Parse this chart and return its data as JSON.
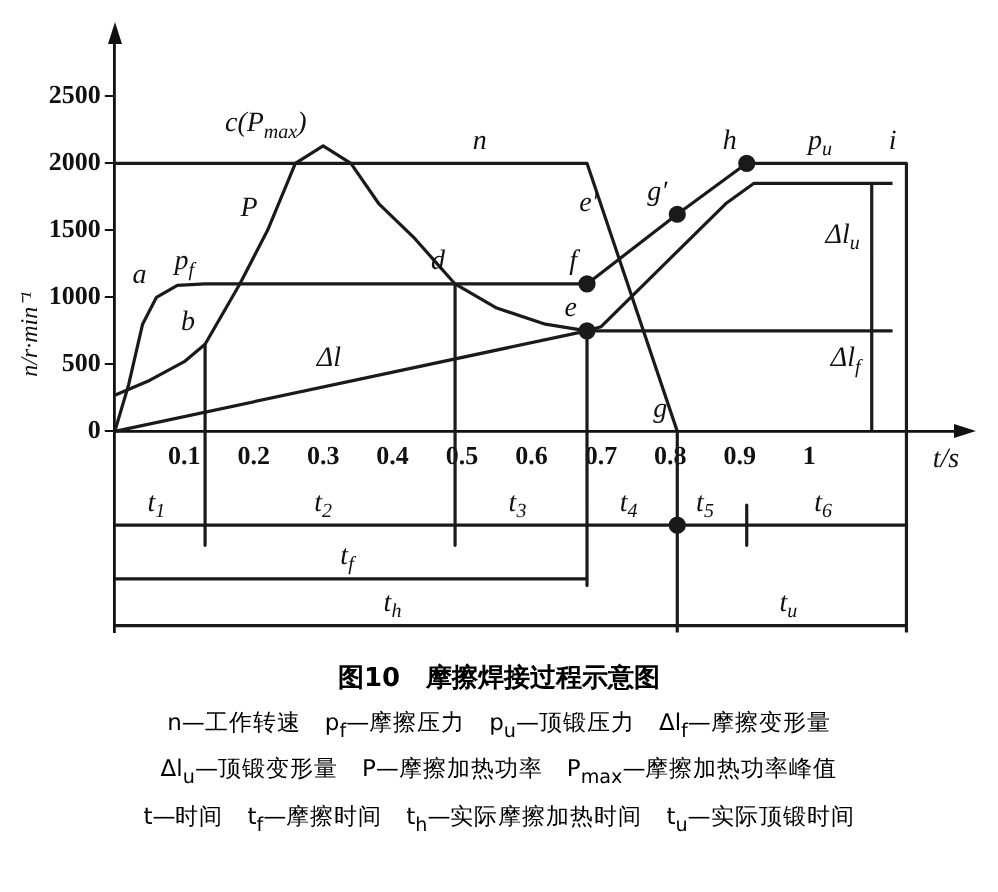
{
  "chart_data": {
    "type": "line",
    "title": "图10　摩擦焊接过程示意图",
    "xlabel": "t/s",
    "ylabel": "n/r·min⁻¹",
    "xlim": [
      0,
      1.22
    ],
    "xticks": [
      0.1,
      0.2,
      0.3,
      0.4,
      0.5,
      0.6,
      0.7,
      0.8,
      0.9,
      1.0
    ],
    "ylim": [
      -1500,
      2950
    ],
    "yticks": [
      0,
      500,
      1000,
      1500,
      2000,
      2500
    ],
    "grid": false,
    "legend": false,
    "series": [
      {
        "color": "#1a1a1a",
        "x": [
          0,
          0.68,
          0.81,
          0.81
        ],
        "values": [
          2000,
          2000,
          0,
          -1500
        ]
      },
      {
        "color": "#1a1a1a",
        "x": [
          0,
          0.02,
          0.04,
          0.06,
          0.09,
          0.13,
          0.68,
          0.81,
          0.91,
          1.14,
          1.14
        ],
        "values": [
          0,
          350,
          800,
          1000,
          1090,
          1100,
          1100,
          1620,
          2000,
          2000,
          -1500
        ]
      },
      {
        "color": "#1a1a1a",
        "x": [
          0,
          0.05,
          0.1,
          0.13,
          0.18,
          0.22,
          0.26,
          0.3,
          0.34,
          0.38,
          0.43,
          0.49,
          0.55,
          0.62,
          0.68
        ],
        "values": [
          270,
          380,
          520,
          650,
          1100,
          1500,
          2000,
          2130,
          2000,
          1700,
          1450,
          1100,
          920,
          800,
          750
        ]
      },
      {
        "color": "#1a1a1a",
        "x": [
          0,
          0.68,
          0.7,
          0.88,
          0.92,
          1.12
        ],
        "values": [
          0,
          750,
          780,
          1700,
          1850,
          1850
        ]
      },
      {
        "color": "#1a1a1a",
        "x": [
          0.68,
          1.12
        ],
        "values": [
          750,
          750
        ]
      },
      {
        "color": "#1a1a1a",
        "x": [
          0.68,
          0.68
        ],
        "values": [
          750,
          -1150
        ]
      },
      {
        "color": "#1a1a1a",
        "x": [
          0.13,
          0.13
        ],
        "values": [
          650,
          -850
        ]
      },
      {
        "color": "#1a1a1a",
        "x": [
          0.49,
          0.49
        ],
        "values": [
          1100,
          -850
        ]
      },
      {
        "color": "#1a1a1a",
        "x": [
          0.91,
          0.91
        ],
        "values": [
          -550,
          -850
        ]
      },
      {
        "color": "#1a1a1a",
        "x": [
          1.09,
          1.09
        ],
        "values": [
          0,
          1850
        ]
      },
      {
        "color": "#1a1a1a",
        "x": [
          0,
          1.14
        ],
        "values": [
          -700,
          -700
        ]
      },
      {
        "color": "#1a1a1a",
        "x": [
          0,
          0.68
        ],
        "values": [
          -1100,
          -1100
        ]
      },
      {
        "color": "#1a1a1a",
        "x": [
          0,
          1.14
        ],
        "values": [
          -1450,
          -1450
        ]
      },
      {
        "type": "scatter",
        "color": "#1a1a1a",
        "x": [
          0.68,
          0.68,
          0.81,
          0.91,
          0.81
        ],
        "values": [
          750,
          1100,
          1620,
          2000,
          -700
        ]
      }
    ],
    "annotations": [
      {
        "text": "p$_{f}$",
        "x": 0.13,
        "y": 1100
      },
      {
        "text": "a",
        "x": 0.06,
        "y": 1000
      },
      {
        "text": "b",
        "x": 0.13,
        "y": 650
      },
      {
        "text": "c(P$_{max}$)",
        "x": 0.3,
        "y": 2130
      },
      {
        "text": "P",
        "x": 0.22,
        "y": 1500
      },
      {
        "text": "d",
        "x": 0.49,
        "y": 1100
      },
      {
        "text": "Δl",
        "x": 0.34,
        "y": 375
      },
      {
        "text": "n",
        "x": 0.55,
        "y": 2000
      },
      {
        "text": "e′",
        "x": 0.71,
        "y": 1538
      },
      {
        "text": "f",
        "x": 0.68,
        "y": 1100
      },
      {
        "text": "e",
        "x": 0.68,
        "y": 750
      },
      {
        "text": "g",
        "x": 0.81,
        "y": 0
      },
      {
        "text": "g′",
        "x": 0.81,
        "y": 1620
      },
      {
        "text": "h",
        "x": 0.91,
        "y": 2000
      },
      {
        "text": "p$_{u}$",
        "x": 1.05,
        "y": 2000
      },
      {
        "text": "i",
        "x": 1.14,
        "y": 2000
      },
      {
        "text": "Δl$_{u}$",
        "x": 1.09,
        "y": 1300
      },
      {
        "text": "Δl$_{f}$",
        "x": 1.09,
        "y": 375
      },
      {
        "text": "t$_{1}$",
        "x": 0.09,
        "y": -700
      },
      {
        "text": "t$_{2}$",
        "x": 0.33,
        "y": -700
      },
      {
        "text": "t$_{3}$",
        "x": 0.61,
        "y": -700
      },
      {
        "text": "t$_{4}$",
        "x": 0.77,
        "y": -700
      },
      {
        "text": "t$_{5}$",
        "x": 0.88,
        "y": -700
      },
      {
        "text": "t$_{6}$",
        "x": 1.05,
        "y": -700
      },
      {
        "text": "t$_{f}$",
        "x": 0.36,
        "y": -1100
      },
      {
        "text": "t$_{h}$",
        "x": 0.43,
        "y": -1450
      },
      {
        "text": "t$_{u}$",
        "x": 1.0,
        "y": -1450
      },
      "n—工作转速　p$_{f}$—摩擦压力　p$_{u}$—顶锻压力　Δl$_{f}$—摩擦变形量",
      "Δl$_{u}$—顶锻变形量　P—摩擦加热功率　P$_{max}$—摩擦加热功率峰值",
      "t—时间　t$_{f}$—摩擦时间　t$_{h}$—实际摩擦加热时间　t$_{u}$—实际顶锻时间"
    ]
  }
}
